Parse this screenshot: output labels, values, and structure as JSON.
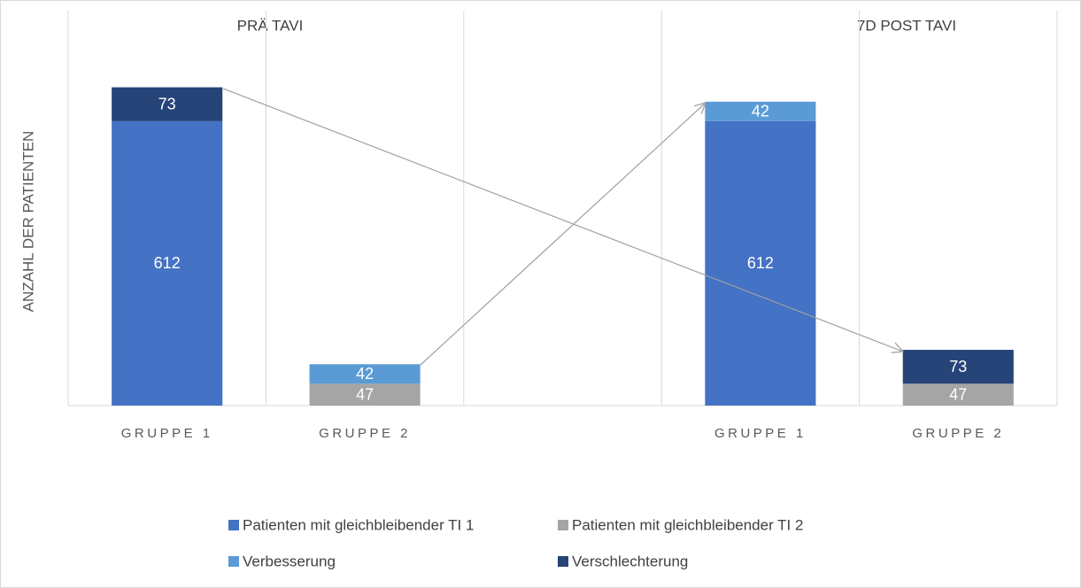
{
  "chart_data": {
    "type": "stacked_bar",
    "annotations": [
      "PRÄ TAVI",
      "7D POST TAVI"
    ],
    "y_label": "ANZAHL DER PATIENTEN",
    "categories": [
      "GRUPPE 1",
      "GRUPPE 2",
      null,
      "GRUPPE 1",
      "GRUPPE 2"
    ],
    "series": [
      {
        "name": "Patienten mit gleichbleibender TI 1",
        "color": "#4472c4",
        "values": [
          612,
          null,
          null,
          612,
          null
        ]
      },
      {
        "name": "Patienten mit gleichbleibender TI 2",
        "color": "#a5a5a5",
        "values": [
          null,
          47,
          null,
          null,
          47
        ]
      },
      {
        "name": "Verbesserung",
        "color": "#5b9bd5",
        "values": [
          null,
          42,
          null,
          42,
          null
        ]
      },
      {
        "name": "Verschlechterung",
        "color": "#264478",
        "values": [
          73,
          null,
          null,
          null,
          73
        ]
      }
    ],
    "ylim": [
      0,
      850
    ],
    "grid": true
  }
}
